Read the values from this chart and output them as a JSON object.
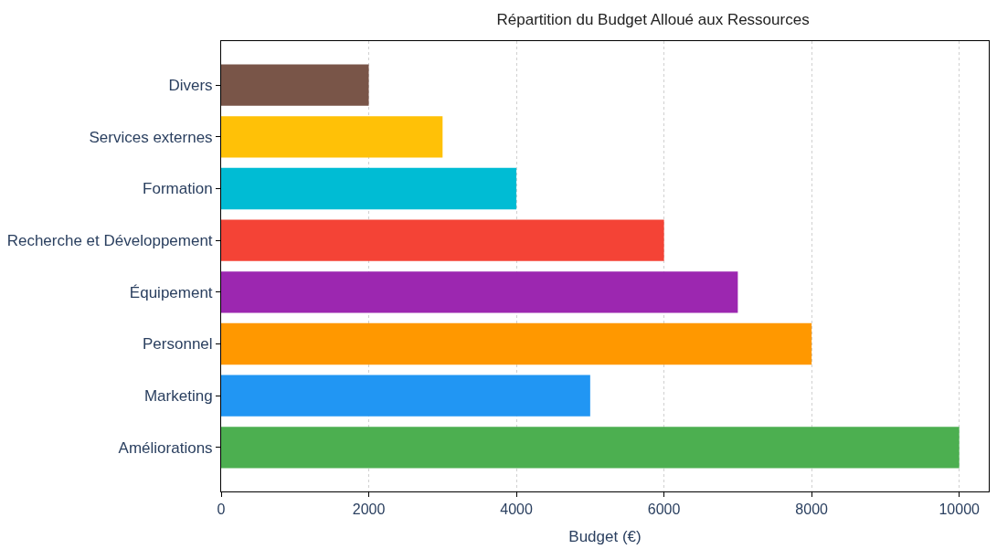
{
  "chart_data": {
    "type": "bar",
    "orientation": "horizontal",
    "title": "Répartition du Budget Alloué aux Ressources",
    "xlabel": "Budget (€)",
    "categories": [
      "Divers",
      "Services externes",
      "Formation",
      "Recherche et Développement",
      "Équipement",
      "Personnel",
      "Marketing",
      "Améliorations"
    ],
    "values": [
      2000,
      3000,
      4000,
      6000,
      7000,
      8000,
      5000,
      10000
    ],
    "colors": [
      "#795548",
      "#ffc107",
      "#00bcd4",
      "#f44336",
      "#9c27b0",
      "#ff9800",
      "#2196f3",
      "#4caf50"
    ],
    "xlim": [
      0,
      10400
    ],
    "xticks": [
      0,
      2000,
      4000,
      6000,
      8000,
      10000
    ],
    "grid": "x"
  }
}
